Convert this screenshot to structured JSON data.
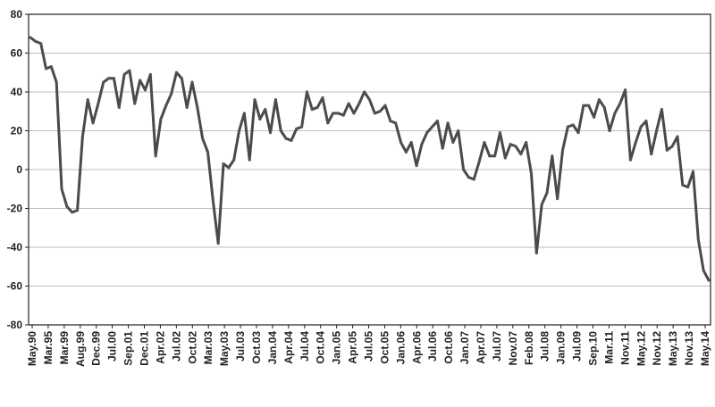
{
  "chart_data": {
    "type": "line",
    "title": "",
    "xlabel": "",
    "ylabel": "",
    "ylim": [
      -80,
      80
    ],
    "yticks": [
      80,
      60,
      40,
      20,
      0,
      -20,
      -40,
      -60,
      -80
    ],
    "grid": true,
    "legend": "none",
    "line_color": "#4a4a4a",
    "xtick_labels": [
      "May.90",
      "Mar.95",
      "Mar.99",
      "Aug.99",
      "Dec.99",
      "Jul.00",
      "Sep.01",
      "Dec.01",
      "Apr.02",
      "Jul.02",
      "Oct.02",
      "Mar.03",
      "May.03",
      "Jul.03",
      "Oct.03",
      "Jan.04",
      "Apr.04",
      "Jul.04",
      "Oct.04",
      "Jan.05",
      "Apr.05",
      "Jul.05",
      "Oct.05",
      "Jan.06",
      "Apr.06",
      "Jul.06",
      "Oct.06",
      "Jan.07",
      "Apr.07",
      "Jul.07",
      "Nov.07",
      "Feb.08",
      "Jul.08",
      "Jan.09",
      "Jul.09",
      "Sep.10",
      "Mar.11",
      "Nov.11",
      "May.12",
      "Nov.12",
      "May.13",
      "Nov.13",
      "May.14"
    ],
    "series": [
      {
        "values": [
          68,
          66,
          65,
          52,
          53,
          45,
          -10,
          -19,
          -22,
          -21,
          17,
          36,
          24,
          34,
          45,
          47,
          47,
          32,
          49,
          51,
          34,
          46,
          41,
          49,
          7,
          26,
          33,
          39,
          50,
          47,
          32,
          45,
          32,
          16,
          9,
          -16,
          -38,
          3,
          1,
          5,
          20,
          29,
          5,
          36,
          26,
          31,
          19,
          36,
          20,
          16,
          15,
          21,
          22,
          40,
          31,
          32,
          37,
          24,
          29,
          29,
          28,
          34,
          29,
          34,
          40,
          36,
          29,
          30,
          33,
          25,
          24,
          14,
          9,
          14,
          2,
          13,
          19,
          22,
          25,
          11,
          24,
          14,
          20,
          0,
          -4,
          -5,
          4,
          14,
          7,
          7,
          19,
          6,
          13,
          12,
          8,
          14,
          -2,
          -43,
          -18,
          -12,
          7,
          -15,
          10,
          22,
          23,
          19,
          33,
          33,
          27,
          36,
          32,
          20,
          29,
          34,
          41,
          5,
          14,
          22,
          25,
          8,
          20,
          31,
          10,
          12,
          17,
          -8,
          -9,
          -1,
          -36,
          -52,
          -57
        ]
      }
    ]
  }
}
